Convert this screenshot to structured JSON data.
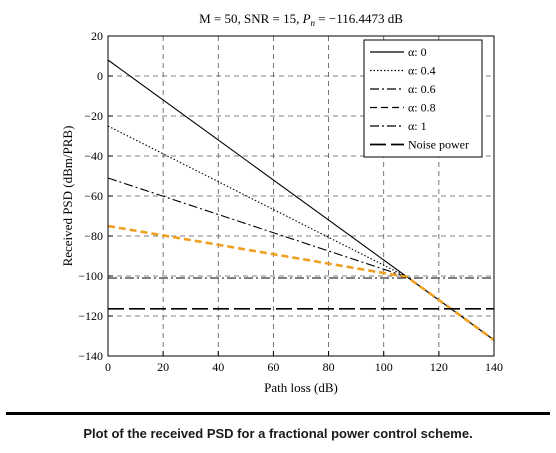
{
  "caption": "Plot of the received PSD for a fractional power control scheme.",
  "chart_data": {
    "type": "line",
    "title_parts": [
      "M = 50, SNR = 15, ",
      "P",
      "n",
      " = −116.4473 dB"
    ],
    "xlabel": "Path loss (dB)",
    "ylabel": "Received PSD (dBm/PRB)",
    "xlim": [
      0,
      140
    ],
    "ylim": [
      -140,
      20
    ],
    "xticks": [
      0,
      20,
      40,
      60,
      80,
      100,
      120,
      140
    ],
    "yticks": [
      20,
      0,
      -20,
      -40,
      -60,
      -80,
      -100,
      -120,
      -140
    ],
    "ytick_labels": [
      "20",
      "0",
      "−20",
      "−40",
      "−60",
      "−80",
      "−100",
      "−120",
      "−140"
    ],
    "grid": "dashed",
    "legend_position": "top-right",
    "series": [
      {
        "name": "α: 0",
        "style": "solid",
        "color": "#000000",
        "x": [
          0,
          108.5,
          140
        ],
        "y": [
          8,
          -100.5,
          -132
        ]
      },
      {
        "name": "α: 0.4",
        "style": "dotted",
        "color": "#000000",
        "x": [
          0,
          108.5
        ],
        "y": [
          -25,
          -100.5
        ]
      },
      {
        "name": "α: 0.6",
        "style": "dashdot",
        "color": "#000000",
        "x": [
          0,
          108.5
        ],
        "y": [
          -51,
          -100.5
        ]
      },
      {
        "name": "α: 0.8",
        "style": "dashed",
        "color": "#f0a020",
        "x": [
          0,
          108.5,
          140
        ],
        "y": [
          -75,
          -100.5,
          -132
        ]
      },
      {
        "name": "α: 1",
        "style": "dashdot",
        "color": "#000000",
        "x": [
          0,
          140
        ],
        "y": [
          -101,
          -101
        ]
      },
      {
        "name": "Noise power",
        "style": "longdash",
        "color": "#000000",
        "x": [
          0,
          140
        ],
        "y": [
          -116.4,
          -116.4
        ]
      }
    ]
  }
}
